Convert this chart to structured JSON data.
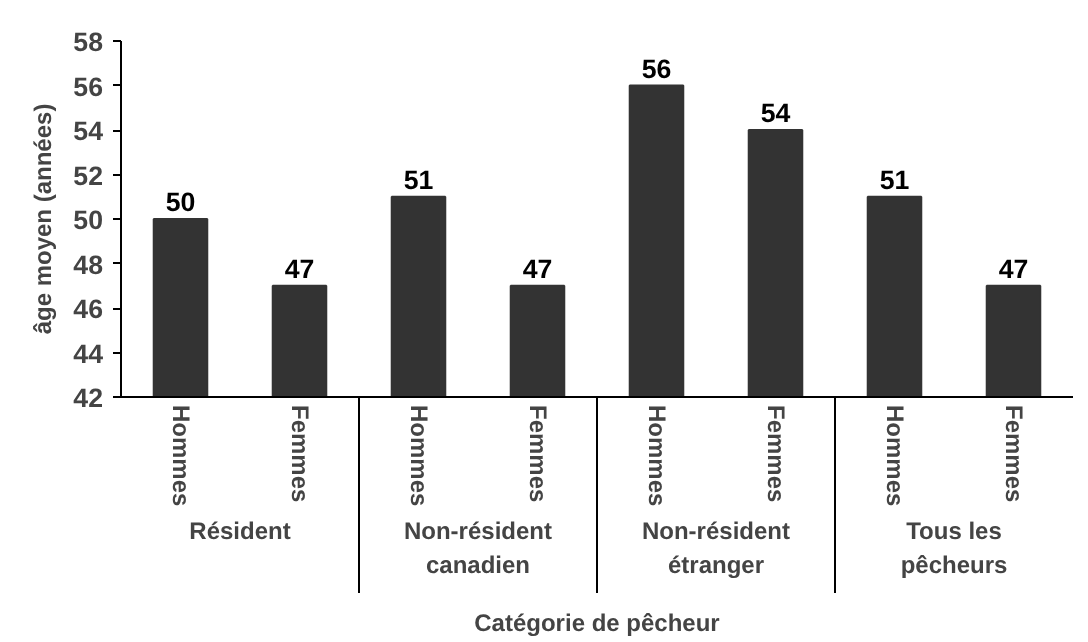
{
  "chart_data": {
    "type": "bar",
    "xlabel": "Catégorie de pêcheur",
    "ylabel": "âge moyen (années)",
    "categories": [
      "Hommes",
      "Femmes",
      "Hommes",
      "Femmes",
      "Hommes",
      "Femmes",
      "Hommes",
      "Femmes"
    ],
    "values": [
      50,
      47,
      51,
      47,
      56,
      54,
      51,
      47
    ],
    "color": "#333333",
    "annotations": [
      "Résident",
      "Non-résident\ncanadien",
      "Non-résident\nétranger",
      "Tous les\npêcheurs"
    ],
    "ylim": [
      42,
      58
    ],
    "yticks": [
      42,
      44,
      46,
      48,
      50,
      52,
      54,
      56,
      58
    ],
    "data_labels": true,
    "grid": false
  }
}
